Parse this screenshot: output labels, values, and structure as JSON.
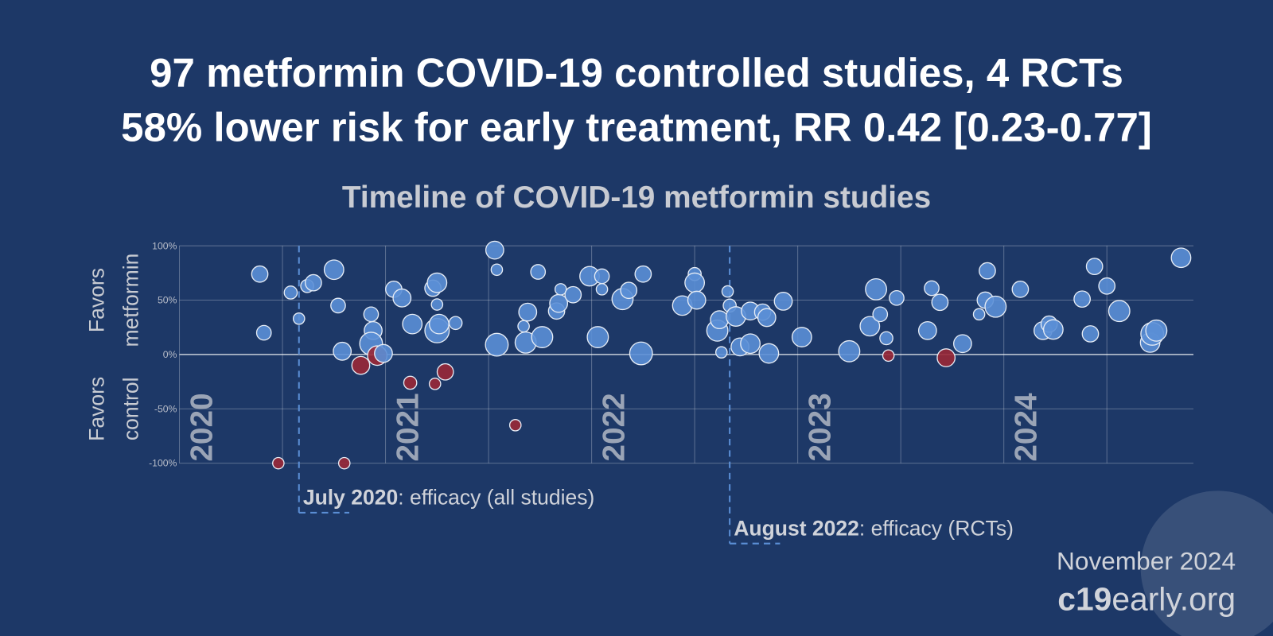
{
  "chart_data": {
    "type": "scatter",
    "title": [
      "97 metformin COVID-19 controlled studies, 4 RCTs",
      "58% lower risk for early treatment, RR 0.42 [0.23-0.77]"
    ],
    "subtitle": "Timeline of COVID-19 metformin studies",
    "y_label_top": [
      "Favors",
      "metformin"
    ],
    "y_label_bottom": [
      "Favors",
      "control"
    ],
    "x": [
      2020.39,
      2020.41,
      2020.48,
      2020.54,
      2020.58,
      2020.62,
      2020.65,
      2020.75,
      2020.77,
      2020.79,
      2020.8,
      2020.88,
      2020.93,
      2020.94,
      2020.93,
      2020.96,
      2020.99,
      2021.04,
      2021.08,
      2021.12,
      2021.13,
      2021.23,
      2021.25,
      2021.25,
      2021.24,
      2021.25,
      2021.26,
      2021.29,
      2021.34,
      2021.53,
      2021.54,
      2021.54,
      2021.63,
      2021.67,
      2021.69,
      2021.68,
      2021.74,
      2021.76,
      2021.83,
      2021.84,
      2021.85,
      2021.91,
      2021.99,
      2022.03,
      2022.05,
      2022.05,
      2022.15,
      2022.18,
      2022.24,
      2022.25,
      2022.44,
      2022.5,
      2022.5,
      2022.51,
      2022.61,
      2022.62,
      2022.63,
      2022.66,
      2022.67,
      2022.7,
      2022.72,
      2022.77,
      2022.77,
      2022.83,
      2022.85,
      2022.86,
      2022.93,
      2023.02,
      2023.25,
      2023.35,
      2023.38,
      2023.4,
      2023.43,
      2023.44,
      2023.48,
      2023.63,
      2023.65,
      2023.69,
      2023.72,
      2023.8,
      2023.88,
      2023.92,
      2023.91,
      2023.96,
      2024.08,
      2024.19,
      2024.22,
      2024.24,
      2024.38,
      2024.42,
      2024.44,
      2024.5,
      2024.56,
      2024.71,
      2024.72,
      2024.74,
      2024.86
    ],
    "series": [
      {
        "values": [
          74,
          20,
          -100,
          57,
          33,
          63,
          66,
          78,
          45,
          3,
          -100,
          -10,
          37,
          22,
          10,
          -1,
          1,
          60,
          52,
          -26,
          28,
          61,
          66,
          46,
          -27,
          22,
          28,
          -16,
          29,
          96,
          78,
          9,
          -65,
          26,
          39,
          11,
          76,
          16,
          40,
          47,
          60,
          55,
          72,
          16,
          72,
          60,
          51,
          59,
          1,
          74,
          45,
          74,
          66,
          50,
          22,
          32,
          2,
          58,
          45,
          35,
          7,
          10,
          40,
          39,
          34,
          1,
          49,
          16,
          3,
          26,
          60,
          37,
          15,
          -1,
          52,
          22,
          61,
          48,
          -3,
          10,
          37,
          77,
          50,
          44,
          60,
          22,
          28,
          23,
          51,
          19,
          81,
          63,
          40,
          11,
          19,
          22,
          89
        ],
        "sizes": [
          10,
          9,
          7,
          8,
          7,
          8,
          10,
          12,
          9,
          11,
          7,
          11,
          9,
          11,
          14,
          12,
          11,
          10,
          11,
          8,
          12,
          10,
          12,
          7,
          7,
          15,
          12,
          10,
          8,
          11,
          7,
          14,
          7,
          7,
          11,
          13,
          9,
          13,
          10,
          11,
          7,
          10,
          12,
          13,
          9,
          7,
          13,
          10,
          14,
          10,
          12,
          8,
          12,
          11,
          13,
          11,
          7,
          7,
          8,
          12,
          11,
          12,
          11,
          10,
          11,
          12,
          11,
          12,
          13,
          12,
          13,
          9,
          8,
          7,
          9,
          11,
          9,
          10,
          11,
          11,
          7,
          10,
          10,
          13,
          10,
          11,
          10,
          12,
          10,
          10,
          10,
          10,
          13,
          12,
          14,
          13,
          12
        ]
      }
    ],
    "color": "#5b8fd6",
    "negative_color": "#9a2836",
    "xlim": [
      2020,
      2024.92
    ],
    "xticks": [
      2020,
      2021,
      2022,
      2023,
      2024
    ],
    "xgrid": [
      2020.5,
      2021.5,
      2022.5,
      2023.5,
      2024.5
    ],
    "ylim": [
      -100,
      100
    ],
    "yticks": [
      {
        "value": -100,
        "label": "-100%"
      },
      {
        "value": -50,
        "label": "-50%"
      },
      {
        "value": 0,
        "label": "0%"
      },
      {
        "value": 50,
        "label": "50%"
      },
      {
        "value": 100,
        "label": "100%"
      }
    ],
    "grid": true,
    "annotations": [
      {
        "x": 2020.58,
        "date": "July 2020",
        "text": ": efficacy (all studies)"
      },
      {
        "x": 2022.67,
        "date": "August 2022",
        "text": ": efficacy (RCTs)"
      }
    ],
    "footer_date": "November 2024",
    "footer_site": [
      "c19",
      "early.org"
    ]
  }
}
